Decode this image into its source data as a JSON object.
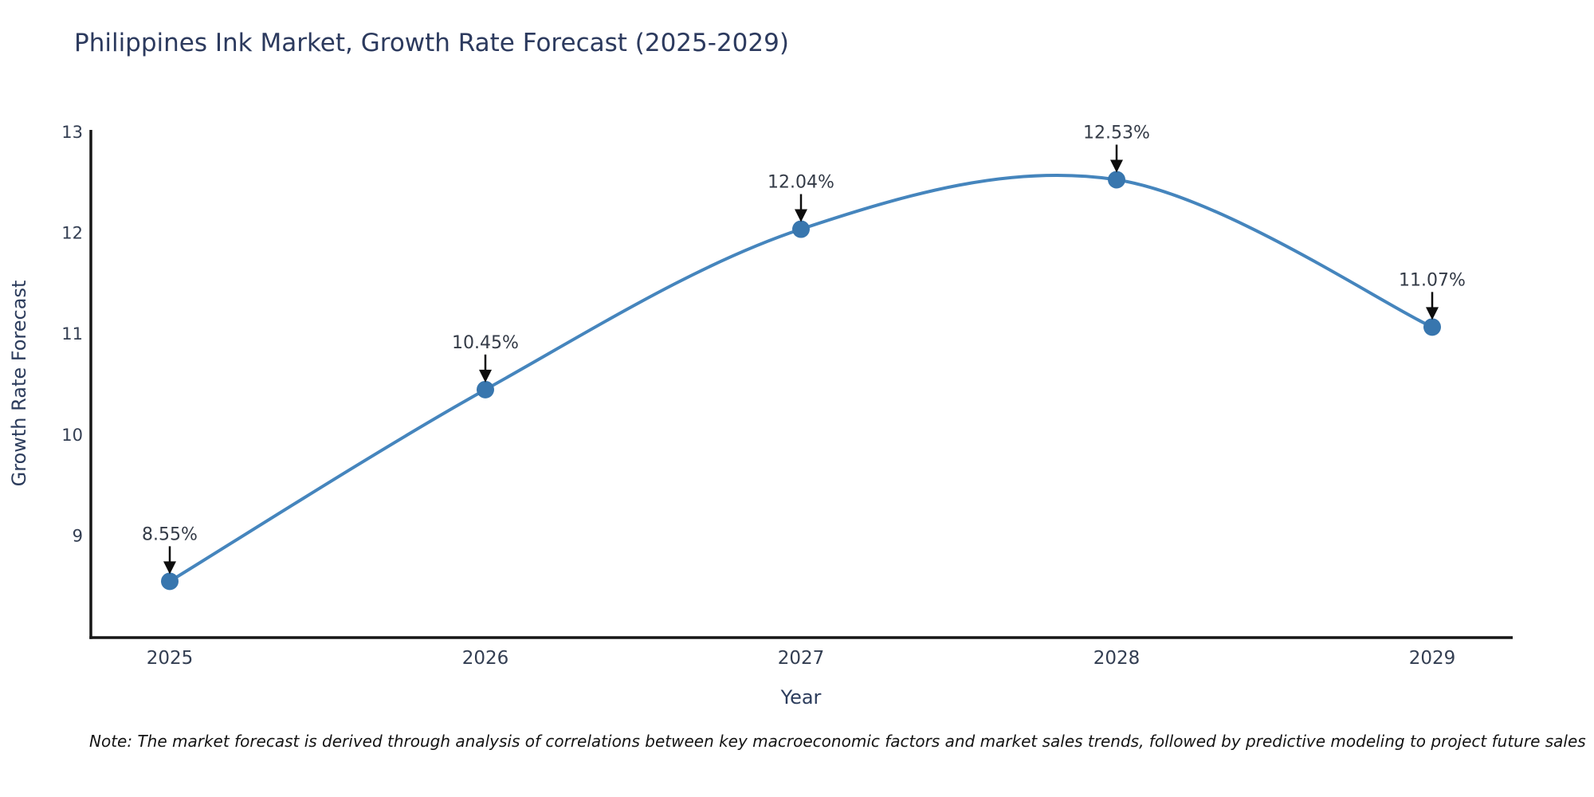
{
  "header": {
    "title": "Philippines Ink Market, Growth Rate Forecast (2025-2029)"
  },
  "footnote": "Note: The market forecast is derived through analysis of correlations between key macroeconomic factors and market sales trends, followed by predictive modeling to project future sales",
  "chart_data": {
    "type": "line",
    "title": "Philippines Ink Market, Growth Rate Forecast (2025-2029)",
    "xlabel": "Year",
    "ylabel": "Growth Rate Forecast",
    "categories": [
      "2025",
      "2026",
      "2027",
      "2028",
      "2029"
    ],
    "series": [
      {
        "name": "Growth Rate Forecast",
        "values": [
          8.55,
          10.45,
          12.04,
          12.53,
          11.07
        ]
      }
    ],
    "point_labels": [
      "8.55%",
      "10.45%",
      "12.04%",
      "12.53%",
      "11.07%"
    ],
    "yticks": [
      9,
      10,
      11,
      12,
      13
    ],
    "ylim": [
      8.0,
      13.0
    ],
    "grid": false,
    "legend": "none",
    "line_style": "spline",
    "annotations": "value labels with downward arrows above each point",
    "colors": {
      "line": "#4585bd",
      "marker": "#3876ae",
      "axis": "#161616",
      "arrow": "#0d0d0d",
      "tick_label": "#333e52",
      "annotation_text": "#343b47",
      "title": "#2c3a5e",
      "axis_title": "#2c3c5c"
    }
  }
}
